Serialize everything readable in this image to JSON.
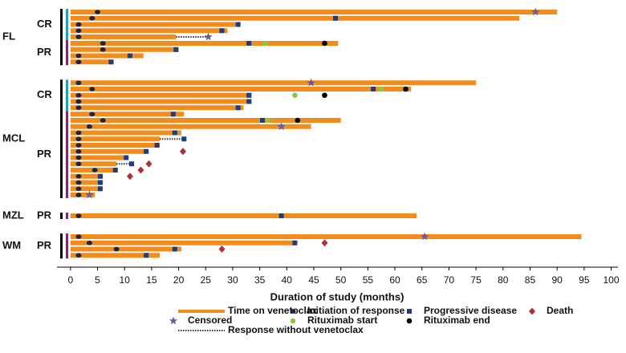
{
  "chart_data": {
    "type": "swimmer",
    "xlabel": "Duration of study (months)",
    "xlim": [
      -2.5,
      102
    ],
    "xticks": [
      0,
      5,
      10,
      15,
      20,
      25,
      30,
      35,
      40,
      45,
      50,
      55,
      60,
      65,
      70,
      75,
      80,
      85,
      90,
      95,
      100
    ],
    "subgroup_colors": {
      "CR": "#1fa3b0",
      "PR": "#7b2a6b"
    },
    "groups": [
      {
        "name": "FL",
        "subgroups": [
          {
            "name": "CR",
            "rows": [
              {
                "end": 90,
                "response": 5,
                "censored": 86
              },
              {
                "end": 83,
                "response": 4,
                "pd": 49
              },
              {
                "end": 31,
                "response": 1.5,
                "pd": 31
              },
              {
                "end": 29,
                "response": 1.5,
                "pd": 28
              },
              {
                "end": 19.5,
                "response": 1.5,
                "no_drug_end": 25.5,
                "censored": 25.5
              }
            ]
          },
          {
            "name": "PR",
            "rows": [
              {
                "end": 49.5,
                "response": 6,
                "pd": 33,
                "rituximab_start": 36,
                "rituximab_end": 47
              },
              {
                "end": 20,
                "response": 6,
                "pd": 19.5
              },
              {
                "end": 13.5,
                "response": 1.5,
                "pd": 11
              },
              {
                "end": 8,
                "response": 1.5,
                "pd": 7.5
              }
            ]
          }
        ]
      },
      {
        "name": "MCL",
        "subgroups": [
          {
            "name": "CR",
            "rows": [
              {
                "end": 75,
                "response": 1.5,
                "censored": 44.5
              },
              {
                "end": 63,
                "response": 4,
                "pd": 56,
                "rituximab_start": 57.5,
                "rituximab_end": 62
              },
              {
                "end": 33.5,
                "response": 1.5,
                "pd": 33,
                "rituximab_start": 41.5,
                "rituximab_end": 47
              },
              {
                "end": 33.5,
                "response": 1.5,
                "pd": 33
              },
              {
                "end": 32,
                "response": 1.5,
                "pd": 31
              }
            ]
          },
          {
            "name": "PR",
            "rows": [
              {
                "end": 21,
                "response": 4,
                "pd": 19
              },
              {
                "end": 50,
                "response": 6,
                "pd": 35.5,
                "rituximab_start": 36.5,
                "rituximab_end": 42
              },
              {
                "end": 44.5,
                "response": 3.5,
                "censored": 39
              },
              {
                "end": 20.5,
                "response": 1.5,
                "pd": 19.3
              },
              {
                "end": 16.5,
                "response": 1.5,
                "no_drug_end": 21,
                "pd": 21
              },
              {
                "end": 16.5,
                "response": 1.5,
                "pd": 16
              },
              {
                "end": 14,
                "response": 1.5,
                "pd": 14,
                "death": 20.8
              },
              {
                "end": 10.7,
                "response": 1.5,
                "pd": 10.3
              },
              {
                "end": 8.5,
                "response": 1.5,
                "no_drug_end": 11.5,
                "pd": 11.3,
                "death": 14.5
              },
              {
                "end": 8.3,
                "response": 4.5,
                "pd": 8.3,
                "death": 13
              },
              {
                "end": 6,
                "response": 1.5,
                "pd": 5.5,
                "death": 11
              },
              {
                "end": 6,
                "response": 1.5,
                "pd": 5.5
              },
              {
                "end": 5.5,
                "response": 1.5,
                "pd": 5.5
              },
              {
                "end": 4.5,
                "response": 1.5,
                "censored": 3.5
              }
            ]
          }
        ]
      },
      {
        "name": "MZL",
        "subgroups": [
          {
            "name": "PR",
            "rows": [
              {
                "end": 64,
                "response": 1.5,
                "pd": 39
              }
            ]
          }
        ]
      },
      {
        "name": "WM",
        "subgroups": [
          {
            "name": "PR",
            "rows": [
              {
                "end": 94.5,
                "response": 1.5,
                "censored": 65.5
              },
              {
                "end": 41.5,
                "response": 3.5,
                "pd": 41.5,
                "death": 47
              },
              {
                "end": 20.5,
                "response": 8.5,
                "pd": 19.3,
                "death": 28
              },
              {
                "end": 16.5,
                "response": 1.5,
                "pd": 14
              }
            ]
          }
        ]
      }
    ],
    "markers": {
      "end": {
        "label": "Time on venetoclax",
        "color": "#f28c1c",
        "shape": "bar"
      },
      "response": {
        "label": "Initiation of response",
        "color": "#1b2545",
        "shape": "ellipse"
      },
      "pd": {
        "label": "Progressive disease",
        "color": "#1f3d7a",
        "shape": "square"
      },
      "death": {
        "label": "Death",
        "color": "#b0303a",
        "shape": "diamond"
      },
      "censored": {
        "label": "Censored",
        "color": "#6b5b9a",
        "shape": "star"
      },
      "rituximab_start": {
        "label": "Rituximab start",
        "color": "#8dc63f",
        "shape": "circle"
      },
      "rituximab_end": {
        "label": "Rituximab end",
        "color": "#000000",
        "shape": "circle"
      },
      "no_drug_end": {
        "label": "Response without venetoclax",
        "color": "#333333",
        "shape": "dotted"
      }
    }
  }
}
